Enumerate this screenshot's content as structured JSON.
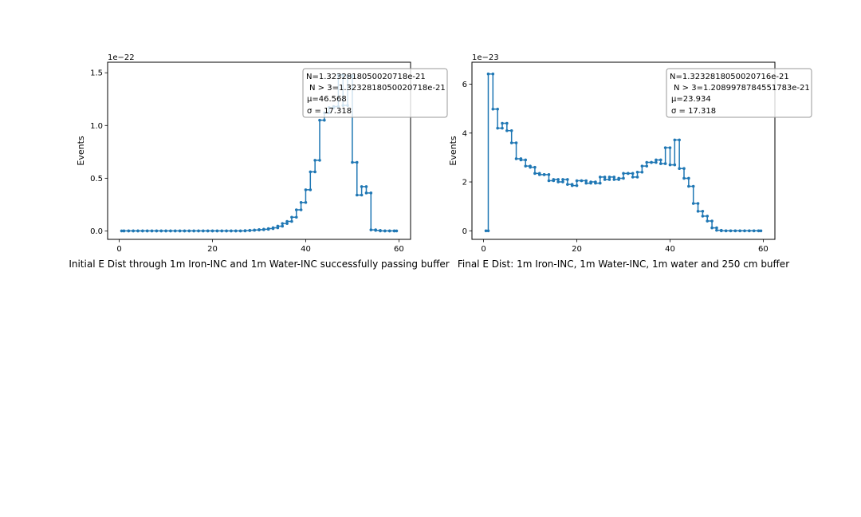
{
  "chart_data": [
    {
      "type": "line",
      "xlabel": "Initial E Dist through 1m Iron-INC and 1m Water-INC successfully passing buffer",
      "ylabel": "Events",
      "offset_text": "1e−22",
      "scale": 1e-22,
      "xlim": [
        -2.5,
        62.5
      ],
      "ylim": [
        -0.08,
        1.6
      ],
      "xticks": [
        0,
        20,
        40,
        60
      ],
      "yticks": [
        0.0,
        0.5,
        1.0,
        1.5
      ],
      "ytick_labels": [
        "0.0",
        "0.5",
        "1.0",
        "1.5"
      ],
      "grid": false,
      "stats_box": {
        "placement": "top-right",
        "lines": [
          "N=1.3232818050020718e-21",
          "N > 3=1.3232818050020718e-21",
          "μ=46.568",
          "σ = 17.318"
        ]
      },
      "series": [
        {
          "color": "#1f77b4",
          "x": [
            0.5,
            1.5,
            2.5,
            3.5,
            4.5,
            5.5,
            6.5,
            7.5,
            8.5,
            9.5,
            10.5,
            11.5,
            12.5,
            13.5,
            14.5,
            15.5,
            16.5,
            17.5,
            18.5,
            19.5,
            20.5,
            21.5,
            22.5,
            23.5,
            24.5,
            25.5,
            26.5,
            27.5,
            28.5,
            29.5,
            30.5,
            31.5,
            32.5,
            33.5,
            34.5,
            35.5,
            36.5,
            37.5,
            38.5,
            39.5,
            40.5,
            41.5,
            42.5,
            43.5,
            44.5,
            45.5,
            46.5,
            47.5,
            48.5,
            49.5,
            50.5,
            51.5,
            52.5,
            53.5,
            54.5,
            55.5,
            56.5,
            57.5,
            58.5,
            59.5
          ],
          "values": [
            0,
            0,
            0,
            0,
            0,
            0,
            0,
            0,
            0,
            0,
            0,
            0,
            0,
            0,
            0,
            0,
            0,
            0,
            0,
            0,
            0,
            0,
            0,
            0,
            0,
            0,
            0,
            0.003,
            0.006,
            0.009,
            0.012,
            0.016,
            0.022,
            0.03,
            0.045,
            0.07,
            0.09,
            0.13,
            0.2,
            0.27,
            0.39,
            0.56,
            0.67,
            1.05,
            1.12,
            1.17,
            1.18,
            1.48,
            1.19,
            1.47,
            0.65,
            0.34,
            0.42,
            0.36,
            0.01,
            0.005,
            0,
            0,
            0,
            0
          ]
        }
      ]
    },
    {
      "type": "line",
      "xlabel": "Final E Dist: 1m Iron-INC, 1m Water-INC, 1m water and 250 cm buffer",
      "ylabel": "Events",
      "offset_text": "1e−23",
      "scale": 1e-23,
      "xlim": [
        -2.5,
        62.5
      ],
      "ylim": [
        -0.35,
        6.9
      ],
      "xticks": [
        0,
        20,
        40,
        60
      ],
      "yticks": [
        0,
        2,
        4,
        6
      ],
      "ytick_labels": [
        "0",
        "2",
        "4",
        "6"
      ],
      "grid": false,
      "stats_box": {
        "placement": "top-right",
        "lines": [
          "N=1.3232818050020716e-21",
          "N > 3=1.2089978784551783e-21",
          "μ=23.934",
          "σ = 17.318"
        ]
      },
      "series": [
        {
          "color": "#1f77b4",
          "x": [
            0.5,
            1.5,
            2.5,
            3.5,
            4.5,
            5.5,
            6.5,
            7.5,
            8.5,
            9.5,
            10.5,
            11.5,
            12.5,
            13.5,
            14.5,
            15.5,
            16.5,
            17.5,
            18.5,
            19.5,
            20.5,
            21.5,
            22.5,
            23.5,
            24.5,
            25.5,
            26.5,
            27.5,
            28.5,
            29.5,
            30.5,
            31.5,
            32.5,
            33.5,
            34.5,
            35.5,
            36.5,
            37.5,
            38.5,
            39.5,
            40.5,
            41.5,
            42.5,
            43.5,
            44.5,
            45.5,
            46.5,
            47.5,
            48.5,
            49.5,
            50.5,
            51.5,
            52.5,
            53.5,
            54.5,
            55.5,
            56.5,
            57.5,
            58.5,
            59.5
          ],
          "values": [
            0,
            6.42,
            4.98,
            4.2,
            4.4,
            4.1,
            3.6,
            2.95,
            2.9,
            2.65,
            2.6,
            2.35,
            2.3,
            2.3,
            2.05,
            2.1,
            2.0,
            2.1,
            1.9,
            1.85,
            2.05,
            2.05,
            1.95,
            2.0,
            1.95,
            2.2,
            2.1,
            2.2,
            2.1,
            2.15,
            2.35,
            2.35,
            2.2,
            2.4,
            2.65,
            2.8,
            2.8,
            2.9,
            2.75,
            3.4,
            2.7,
            3.72,
            2.55,
            2.15,
            1.82,
            1.12,
            0.8,
            0.6,
            0.4,
            0.12,
            0.02,
            0,
            0,
            0,
            0,
            0,
            0,
            0,
            0,
            0
          ]
        }
      ]
    }
  ]
}
